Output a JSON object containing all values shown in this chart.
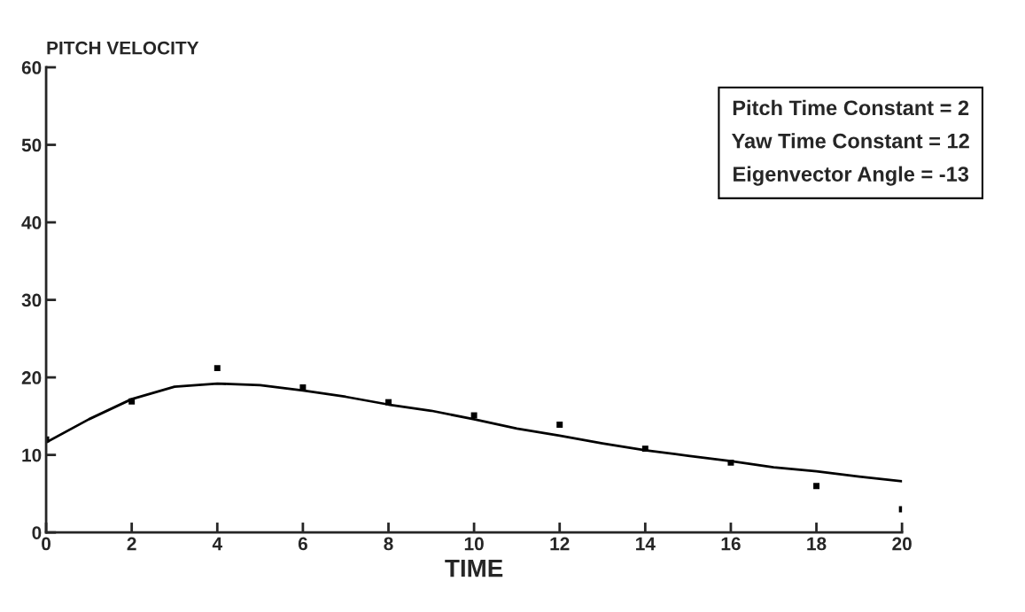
{
  "chart_data": {
    "type": "scatter",
    "xlabel": "TIME",
    "ylabel": "PITCH VELOCITY",
    "xlim": [
      0,
      20
    ],
    "ylim": [
      0,
      60
    ],
    "xticks": [
      0,
      2,
      4,
      6,
      8,
      10,
      12,
      14,
      16,
      18,
      20
    ],
    "yticks": [
      0,
      10,
      20,
      30,
      40,
      50,
      60
    ],
    "grid": false,
    "series": [
      {
        "color": "#000000",
        "marker": "square",
        "x": [
          0,
          2,
          4,
          6,
          8,
          10,
          12,
          14,
          16,
          18,
          20
        ],
        "values": [
          12.0,
          16.9,
          21.2,
          18.7,
          16.8,
          15.1,
          13.9,
          10.8,
          9.0,
          6.0,
          3.0
        ]
      },
      {
        "type": "line",
        "color": "#000000",
        "marker": "none",
        "line_style": "solid",
        "x": [
          0,
          1,
          2,
          3,
          4,
          5,
          6,
          7,
          8,
          9,
          10,
          11,
          12,
          13,
          14,
          15,
          16,
          17,
          18,
          19,
          20
        ],
        "values": [
          11.6,
          14.6,
          17.2,
          18.8,
          19.2,
          19.0,
          18.3,
          17.5,
          16.5,
          15.7,
          14.6,
          13.4,
          12.5,
          11.5,
          10.6,
          9.9,
          9.2,
          8.4,
          7.9,
          7.2,
          6.6
        ]
      }
    ],
    "annotations": [
      "Pitch Time Constant = 2\nYaw Time Constant = 12\nEigenvector Angle = -13"
    ]
  }
}
